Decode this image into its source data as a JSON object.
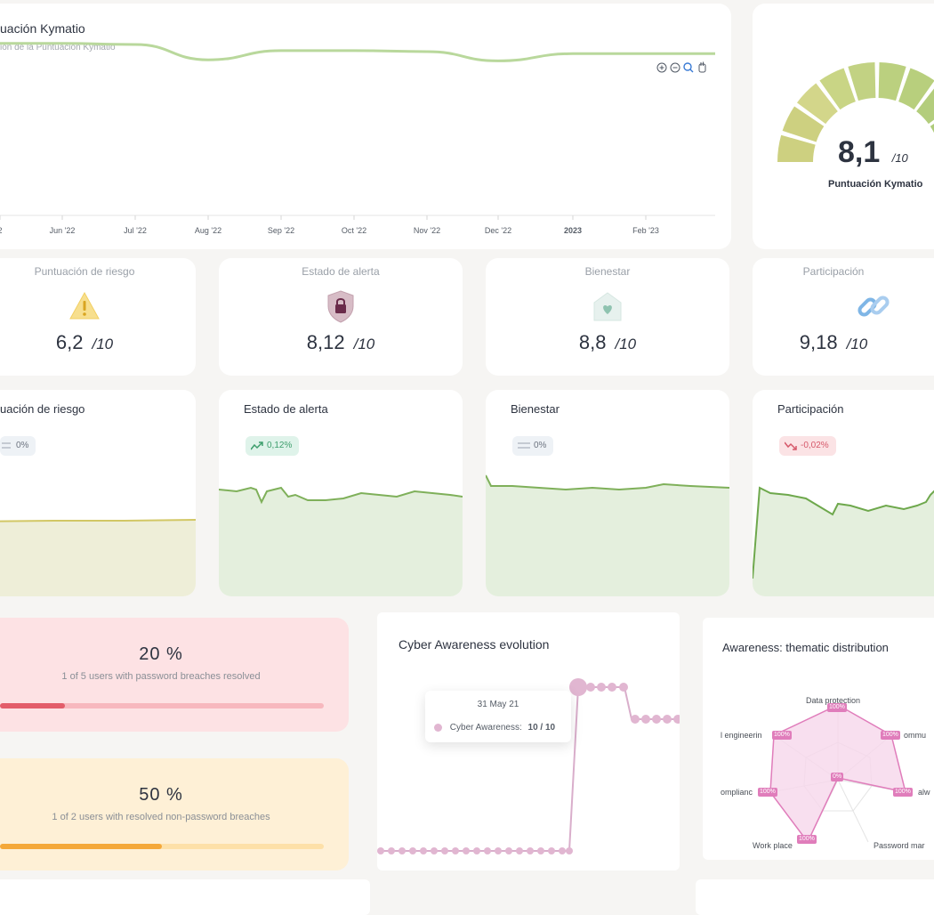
{
  "kymatio_chart": {
    "title": "uación Kymatio",
    "subtitle": "ión de la Puntuación Kymatio",
    "x_ticks": [
      "2",
      "Jun '22",
      "Jul '22",
      "Aug '22",
      "Sep '22",
      "Oct '22",
      "Nov '22",
      "Dec '22",
      "2023",
      "Feb '23"
    ],
    "toolbar_icons": [
      "zoom-in-icon",
      "zoom-out-icon",
      "magnifier-icon",
      "pan-hand-icon"
    ],
    "color": "#b9d89c"
  },
  "chart_data": [
    {
      "type": "line",
      "title": "uación Kymatio",
      "x": [
        "2",
        "Jun '22",
        "Jul '22",
        "Aug '22",
        "Sep '22",
        "Oct '22",
        "Nov '22",
        "Dec '22",
        "2023",
        "Feb '23"
      ],
      "y": [
        8.4,
        8.4,
        8.35,
        7.6,
        8.05,
        8.05,
        8.0,
        7.55,
        7.9,
        7.9
      ],
      "ylim": [
        0,
        10
      ]
    }
  ],
  "gauge": {
    "value": "8,1",
    "denominator": "/10",
    "label": "Puntuación Kymatio",
    "level": 0.81
  },
  "kpis": [
    {
      "title": "Puntuación de riesgo",
      "value": "6,2",
      "den": "/10",
      "icon": "warning-icon"
    },
    {
      "title": "Estado de alerta",
      "value": "8,12",
      "den": "/10",
      "icon": "shield-lock-icon"
    },
    {
      "title": "Bienestar",
      "value": "8,8",
      "den": "/10",
      "icon": "home-heart-icon"
    },
    {
      "title": "Participación",
      "value": "9,18",
      "den": "/10",
      "icon": "link-icon"
    }
  ],
  "mini_charts": [
    {
      "title": "uación de riesgo",
      "badge": "0%",
      "trend": "flat"
    },
    {
      "title": "Estado de alerta",
      "badge": "0,12%",
      "trend": "up"
    },
    {
      "title": "Bienestar",
      "badge": "0%",
      "trend": "flat"
    },
    {
      "title": "Participación",
      "badge": "-0,02%",
      "trend": "down"
    }
  ],
  "breaches": [
    {
      "value": "20 %",
      "text": "1 of 5 users with password breaches resolved",
      "progress": 0.2
    },
    {
      "value": "50 %",
      "text": "1 of 2 users with resolved non-password breaches",
      "progress": 0.5
    }
  ],
  "cyber": {
    "title": "Cyber Awareness evolution",
    "tooltip_date": "31 May 21",
    "tooltip_label": "Cyber Awareness:",
    "tooltip_value": "10 / 10"
  },
  "radar": {
    "title": "Awareness: thematic distribution",
    "labels": [
      "Data protection",
      "l engineerin",
      "ommu",
      "omplianc",
      "alw",
      "Work place",
      "Password mar"
    ],
    "values": [
      "100%",
      "100%",
      "100%",
      "100%",
      "100%",
      "0%",
      "100%"
    ]
  }
}
